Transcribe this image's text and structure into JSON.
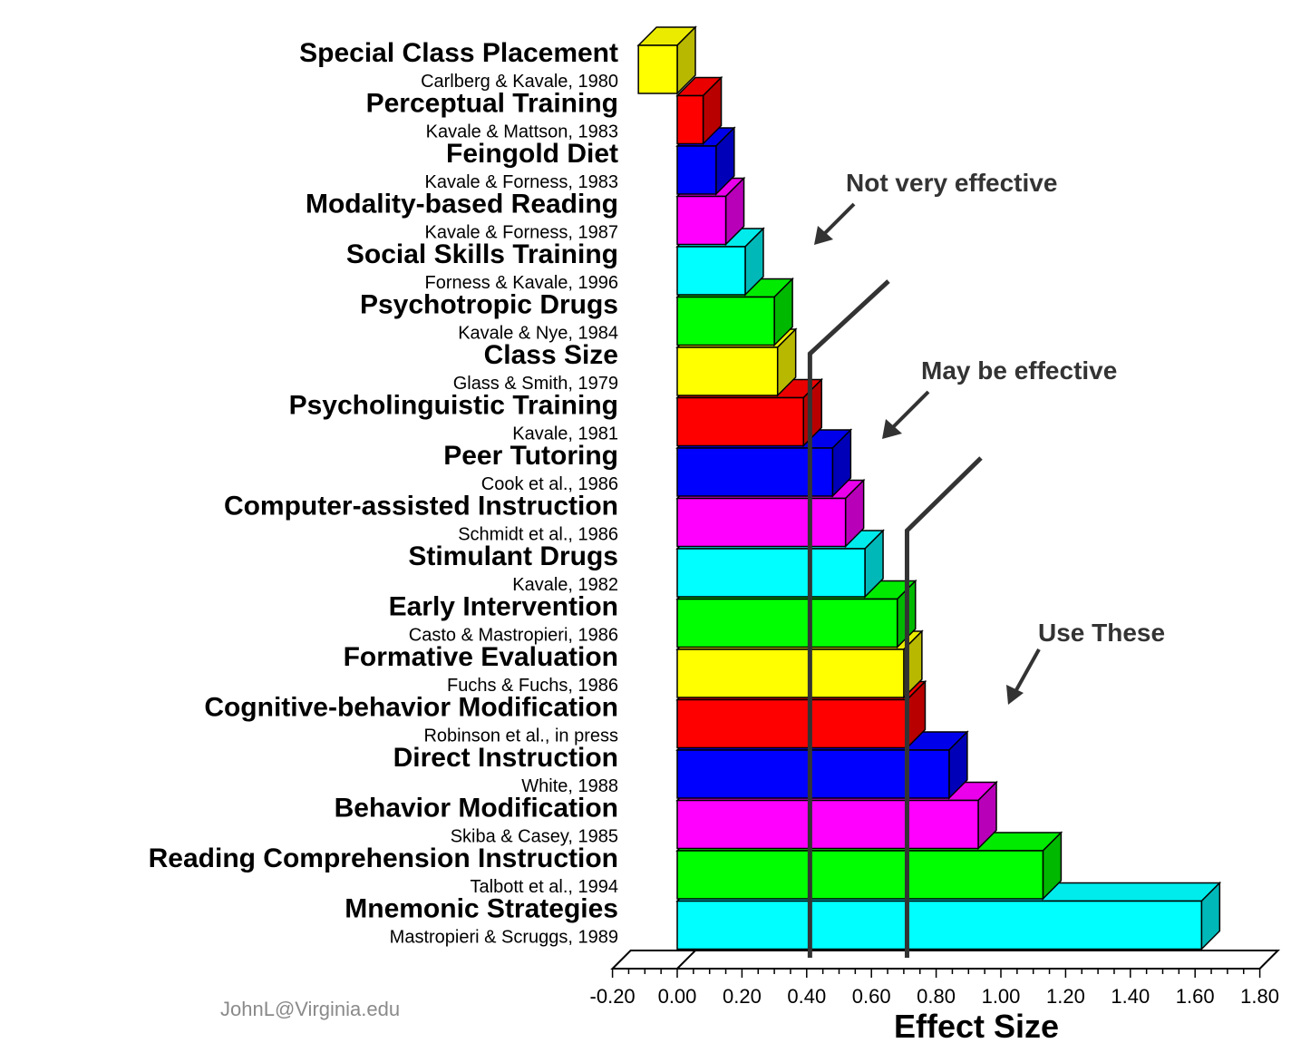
{
  "chart_data": {
    "type": "bar",
    "orientation": "horizontal",
    "xlabel": "Effect Size",
    "xlim": [
      -0.2,
      1.8
    ],
    "xticks": [
      "-0.20",
      "0.00",
      "0.20",
      "0.40",
      "0.60",
      "0.80",
      "1.00",
      "1.20",
      "1.40",
      "1.60",
      "1.80"
    ],
    "bars": [
      {
        "name": "Special Class Placement",
        "source": "Carlberg & Kavale, 1980",
        "value": -0.12,
        "color": "#ffff00"
      },
      {
        "name": "Perceptual Training",
        "source": "Kavale & Mattson, 1983",
        "value": 0.08,
        "color": "#ff0000"
      },
      {
        "name": "Feingold Diet",
        "source": "Kavale & Forness, 1983",
        "value": 0.12,
        "color": "#0000ff"
      },
      {
        "name": "Modality-based Reading",
        "source": "Kavale & Forness, 1987",
        "value": 0.15,
        "color": "#ff00ff"
      },
      {
        "name": "Social Skills Training",
        "source": "Forness & Kavale, 1996",
        "value": 0.21,
        "color": "#00ffff"
      },
      {
        "name": "Psychotropic Drugs",
        "source": "Kavale & Nye, 1984",
        "value": 0.3,
        "color": "#00ff00"
      },
      {
        "name": "Class Size",
        "source": "Glass & Smith, 1979",
        "value": 0.31,
        "color": "#ffff00"
      },
      {
        "name": "Psycholinguistic Training",
        "source": "Kavale, 1981",
        "value": 0.39,
        "color": "#ff0000"
      },
      {
        "name": "Peer Tutoring",
        "source": "Cook et al., 1986",
        "value": 0.48,
        "color": "#0000ff"
      },
      {
        "name": "Computer-assisted Instruction",
        "source": "Schmidt et al., 1986",
        "value": 0.52,
        "color": "#ff00ff"
      },
      {
        "name": "Stimulant Drugs",
        "source": "Kavale, 1982",
        "value": 0.58,
        "color": "#00ffff"
      },
      {
        "name": "Early Intervention",
        "source": "Casto & Mastropieri, 1986",
        "value": 0.68,
        "color": "#00ff00"
      },
      {
        "name": "Formative Evaluation",
        "source": "Fuchs & Fuchs, 1986",
        "value": 0.7,
        "color": "#ffff00"
      },
      {
        "name": "Cognitive-behavior Modification",
        "source": "Robinson et al., in press",
        "value": 0.71,
        "color": "#ff0000"
      },
      {
        "name": "Direct Instruction",
        "source": "White, 1988",
        "value": 0.84,
        "color": "#0000ff"
      },
      {
        "name": "Behavior Modification",
        "source": "Skiba & Casey, 1985",
        "value": 0.93,
        "color": "#ff00ff"
      },
      {
        "name": "Reading Comprehension Instruction",
        "source": "Talbott et al., 1994",
        "value": 1.13,
        "color": "#00ff00"
      },
      {
        "name": "Mnemonic Strategies",
        "source": "Mastropieri & Scruggs, 1989",
        "value": 1.62,
        "color": "#00ffff"
      }
    ],
    "thresholds": [
      0.41,
      0.71
    ],
    "annotations": [
      "Not very effective",
      "May be effective",
      "Use These"
    ],
    "grid": false
  },
  "credit": "JohnL@Virginia.edu"
}
